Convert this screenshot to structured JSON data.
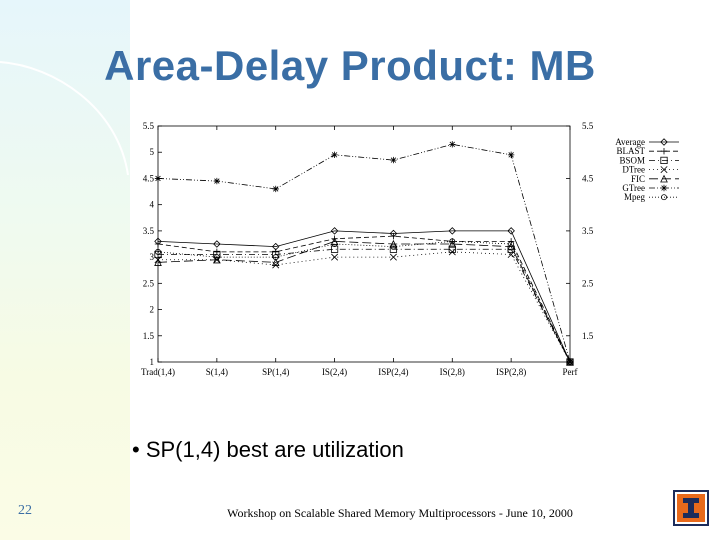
{
  "slide": {
    "title": "Area-Delay Product: MB",
    "bullet": "SP(1,4) best are utilization",
    "bullet_marker": "•",
    "page_number": "22",
    "footer": "Workshop on Scalable Shared Memory Multiprocessors - June 10, 2000",
    "logo": "university-of-illinois-I-logo"
  },
  "chart_data": {
    "type": "line",
    "title": "",
    "xlabel": "",
    "ylabel": "",
    "ylim": [
      1,
      5.5
    ],
    "yticks": [
      "1",
      "1.5",
      "2",
      "2.5",
      "3",
      "3.5",
      "4",
      "4.5",
      "5",
      "5.5"
    ],
    "yticks_right": [
      "1.5",
      "2.5",
      "3.5",
      "4.5",
      "5.5"
    ],
    "categories": [
      "Trad(1,4)",
      "S(1,4)",
      "SP(1,4)",
      "IS(2,4)",
      "ISP(2,4)",
      "IS(2,8)",
      "ISP(2,8)",
      "Perf"
    ],
    "legend_position": "top-right",
    "series": [
      {
        "name": "Average",
        "marker": "diamond",
        "dash": "solid",
        "values": [
          3.3,
          3.25,
          3.2,
          3.5,
          3.45,
          3.5,
          3.5,
          1
        ]
      },
      {
        "name": "BLAST",
        "marker": "plus",
        "dash": "dash",
        "values": [
          3.25,
          3.1,
          3.1,
          3.35,
          3.4,
          3.3,
          3.3,
          1
        ]
      },
      {
        "name": "BSOM",
        "marker": "square",
        "dash": "dashdot",
        "values": [
          3.05,
          3.05,
          3.05,
          3.15,
          3.15,
          3.15,
          3.15,
          1
        ]
      },
      {
        "name": "DTree",
        "marker": "cross",
        "dash": "dot",
        "values": [
          2.95,
          2.95,
          2.85,
          3.0,
          3.0,
          3.1,
          3.05,
          1
        ]
      },
      {
        "name": "FIC",
        "marker": "triangle",
        "dash": "longdash",
        "values": [
          2.9,
          2.95,
          2.9,
          3.3,
          3.25,
          3.25,
          3.2,
          1
        ]
      },
      {
        "name": "GTree",
        "marker": "star",
        "dash": "dashdotdot",
        "values": [
          4.5,
          4.45,
          4.3,
          4.95,
          4.85,
          5.15,
          4.95,
          1
        ]
      },
      {
        "name": "Mpeg",
        "marker": "circle",
        "dash": "finedot",
        "values": [
          3.1,
          3.0,
          3.0,
          3.25,
          3.2,
          3.3,
          3.25,
          1
        ]
      }
    ]
  }
}
